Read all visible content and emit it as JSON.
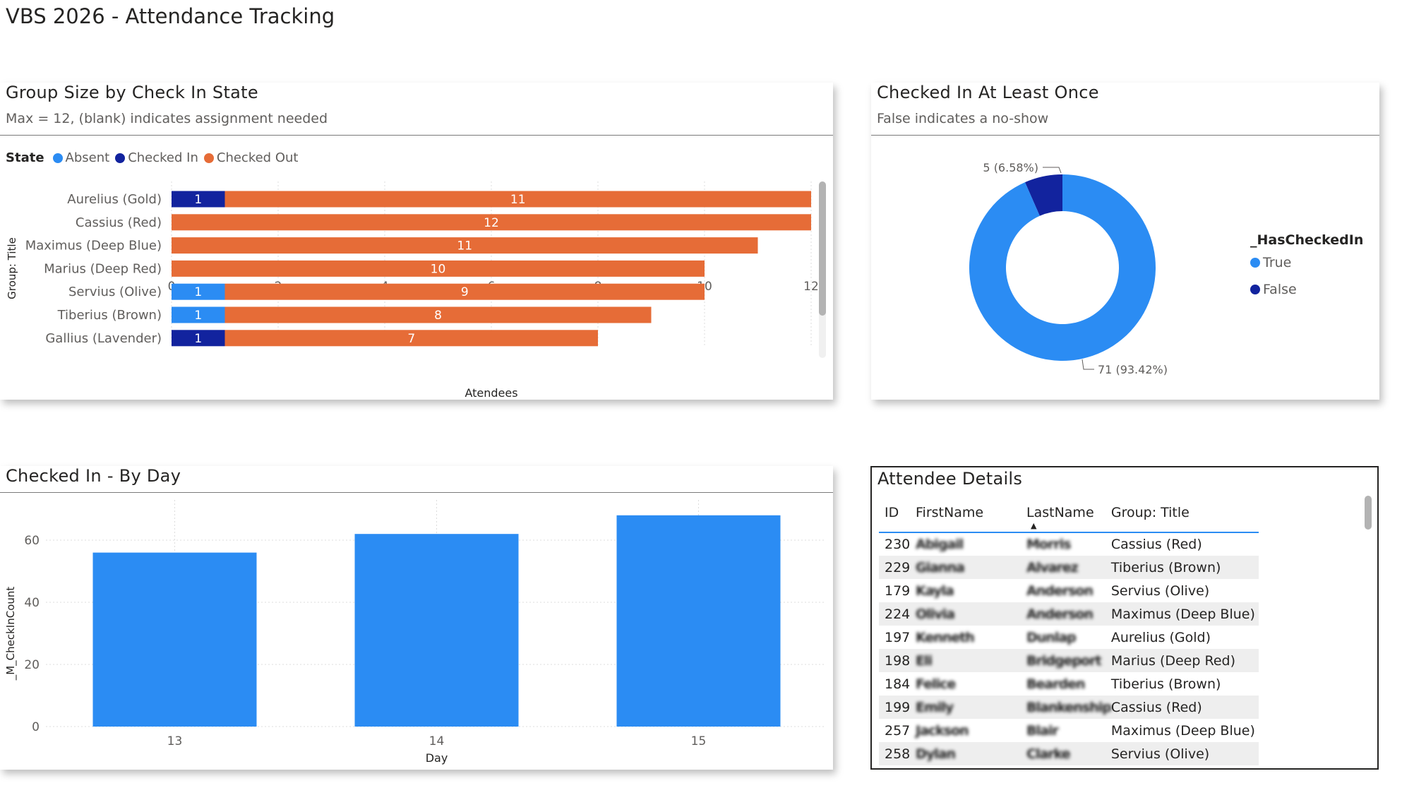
{
  "page": {
    "title": "VBS 2026 - Attendance Tracking"
  },
  "group_size": {
    "title": "Group Size by Check In State",
    "subtitle": "Max = 12, (blank) indicates assignment needed",
    "legend_title": "State",
    "legend": [
      {
        "name": "Absent",
        "color": "#2b8cf3"
      },
      {
        "name": "Checked In",
        "color": "#12239e"
      },
      {
        "name": "Checked Out",
        "color": "#e66c37"
      }
    ],
    "y_axis_label": "Group: Title",
    "x_axis_label": "Atendees"
  },
  "checked_once": {
    "title": "Checked In At Least Once",
    "subtitle": "False indicates a no-show",
    "legend_title": "_HasCheckedIn",
    "legend": [
      {
        "name": "True",
        "color": "#2b8cf3"
      },
      {
        "name": "False",
        "color": "#12239e"
      }
    ]
  },
  "by_day": {
    "title": "Checked In - By Day",
    "y_axis_label": "_M_CheckInCount",
    "x_axis_label": "Day"
  },
  "attendees": {
    "title": "Attendee Details",
    "columns": [
      "ID",
      "FirstName",
      "LastName",
      "Group: Title"
    ],
    "rows": [
      {
        "id": "230",
        "first": "Abigail",
        "last": "Morris",
        "group": "Cassius (Red)"
      },
      {
        "id": "229",
        "first": "Gianna",
        "last": "Alvarez",
        "group": "Tiberius (Brown)"
      },
      {
        "id": "179",
        "first": "Kayla",
        "last": "Anderson",
        "group": "Servius (Olive)"
      },
      {
        "id": "224",
        "first": "Olivia",
        "last": "Anderson",
        "group": "Maximus (Deep Blue)"
      },
      {
        "id": "197",
        "first": "Kenneth",
        "last": "Dunlap",
        "group": "Aurelius (Gold)"
      },
      {
        "id": "198",
        "first": "Eli",
        "last": "Bridgeport",
        "group": "Marius (Deep Red)"
      },
      {
        "id": "184",
        "first": "Felice",
        "last": "Bearden",
        "group": "Tiberius (Brown)"
      },
      {
        "id": "199",
        "first": "Emily",
        "last": "Blankenship",
        "group": "Cassius (Red)"
      },
      {
        "id": "257",
        "first": "Jackson",
        "last": "Blair",
        "group": "Maximus (Deep Blue)"
      },
      {
        "id": "258",
        "first": "Dylan",
        "last": "Clarke",
        "group": "Servius (Olive)"
      }
    ]
  },
  "chart_data": [
    {
      "type": "bar",
      "orientation": "horizontal",
      "stacked": true,
      "title": "Group Size by Check In State",
      "subtitle": "Max = 12, (blank) indicates assignment needed",
      "xlabel": "Atendees",
      "ylabel": "Group: Title",
      "xlim": [
        0,
        12
      ],
      "xticks": [
        0,
        2,
        4,
        6,
        8,
        10,
        12
      ],
      "legend_position": "top-left",
      "grid": true,
      "categories": [
        "Aurelius (Gold)",
        "Cassius (Red)",
        "Maximus (Deep Blue)",
        "Marius (Deep Red)",
        "Servius (Olive)",
        "Tiberius (Brown)",
        "Gallius (Lavender)"
      ],
      "series": [
        {
          "name": "Absent",
          "color": "#2b8cf3",
          "values": [
            0,
            0,
            0,
            0,
            1,
            1,
            0
          ]
        },
        {
          "name": "Checked In",
          "color": "#12239e",
          "values": [
            1,
            0,
            0,
            0,
            0,
            0,
            1
          ]
        },
        {
          "name": "Checked Out",
          "color": "#e66c37",
          "values": [
            11,
            12,
            11,
            10,
            9,
            8,
            7
          ]
        }
      ]
    },
    {
      "type": "pie",
      "donut": true,
      "title": "Checked In At Least Once",
      "subtitle": "False indicates a no-show",
      "legend_position": "right",
      "slices": [
        {
          "name": "True",
          "value": 71,
          "label": "71 (93.42%)",
          "color": "#2b8cf3"
        },
        {
          "name": "False",
          "value": 5,
          "label": "5 (6.58%)",
          "color": "#12239e"
        }
      ]
    },
    {
      "type": "bar",
      "orientation": "vertical",
      "title": "Checked In - By Day",
      "xlabel": "Day",
      "ylabel": "_M_CheckInCount",
      "ylim": [
        0,
        70
      ],
      "yticks": [
        0,
        20,
        40,
        60
      ],
      "grid": true,
      "categories": [
        "13",
        "14",
        "15"
      ],
      "series": [
        {
          "color": "#2b8cf3",
          "values": [
            56,
            62,
            68
          ]
        }
      ]
    }
  ]
}
